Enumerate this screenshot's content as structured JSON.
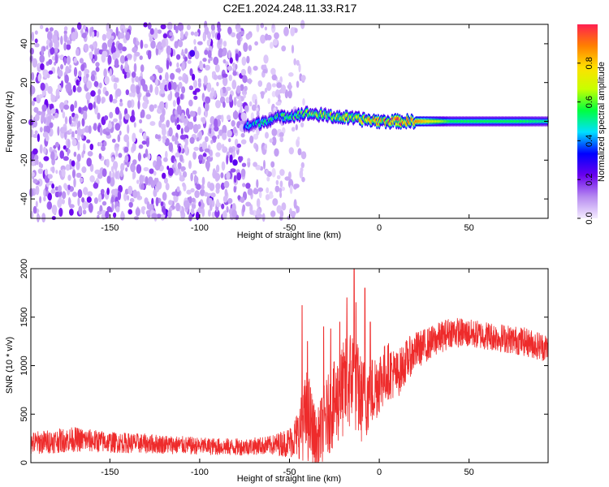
{
  "page": {
    "title": "C2E1.2024.248.11.33.R17"
  },
  "chart_data": [
    {
      "type": "heatmap",
      "title": "C2E1.2024.248.11.33.R17",
      "xlabel": "Height of straight line (km)",
      "ylabel": "Frequency (Hz)",
      "xlim": [
        -194,
        94
      ],
      "ylim": [
        -50,
        50
      ],
      "x_ticks": [
        -150,
        -100,
        -50,
        0,
        50
      ],
      "y_ticks": [
        -40,
        -20,
        0,
        20,
        40
      ],
      "x_tick_labels": [
        "-150",
        "-100",
        "-50",
        "0",
        "50"
      ],
      "y_tick_labels": [
        "-40",
        "-20",
        "0",
        "20",
        "40"
      ],
      "colorbar": {
        "label": "Normalized spectral amplitude",
        "range": [
          0,
          1
        ],
        "ticks": [
          0.0,
          0.2,
          0.4,
          0.6,
          0.8
        ],
        "tick_labels": [
          "0.0",
          "0.2",
          "0.4",
          "0.6",
          "0.8"
        ],
        "colors": [
          "#f4ecff",
          "#b68af0",
          "#6a00ee",
          "#0000ff",
          "#00e0ff",
          "#00ff40",
          "#c8ff00",
          "#ffe000",
          "#ff8000",
          "#ff2050"
        ]
      },
      "features": {
        "noise_region_x": [
          -194,
          -73
        ],
        "sparse_noise_x": [
          -73,
          -42
        ],
        "signal_track": [
          {
            "x": -75,
            "freq": -3,
            "amp": 0.45
          },
          {
            "x": -60,
            "freq": 1,
            "amp": 0.5
          },
          {
            "x": -50,
            "freq": 3,
            "amp": 0.5
          },
          {
            "x": -40,
            "freq": 4,
            "amp": 0.6
          },
          {
            "x": -30,
            "freq": 3,
            "amp": 0.65
          },
          {
            "x": -20,
            "freq": 2,
            "amp": 0.7
          },
          {
            "x": -10,
            "freq": 1,
            "amp": 0.75
          },
          {
            "x": 0,
            "freq": 0,
            "amp": 0.8
          },
          {
            "x": 10,
            "freq": 0,
            "amp": 0.85
          },
          {
            "x": 20,
            "freq": 0,
            "amp": 0.9
          },
          {
            "x": 40,
            "freq": 0,
            "amp": 0.55
          },
          {
            "x": 60,
            "freq": 0,
            "amp": 0.55
          },
          {
            "x": 80,
            "freq": 0,
            "amp": 0.55
          },
          {
            "x": 94,
            "freq": 0,
            "amp": 0.5
          }
        ]
      }
    },
    {
      "type": "line",
      "xlabel": "Height of straight line (km)",
      "ylabel": "SNR (10 * v/v)",
      "xlim": [
        -194,
        94
      ],
      "ylim": [
        0,
        2000
      ],
      "x_ticks": [
        -150,
        -100,
        -50,
        0,
        50
      ],
      "y_ticks": [
        0,
        500,
        1000,
        1500,
        2000
      ],
      "x_tick_labels": [
        "-150",
        "-100",
        "-50",
        "0",
        "50"
      ],
      "y_tick_labels": [
        "0",
        "500",
        "1000",
        "1500",
        "2000"
      ],
      "color": "#ee2b2b",
      "series": [
        {
          "x": [
            -194,
            -170,
            -150,
            -120,
            -100,
            -80,
            -70,
            -60,
            -50,
            -45,
            -40,
            -35,
            -30,
            -25,
            -20,
            -15,
            -10,
            -5,
            0,
            5,
            10,
            15,
            20,
            25,
            30,
            40,
            50,
            60,
            70,
            80,
            94
          ],
          "y": [
            200,
            240,
            210,
            190,
            170,
            160,
            170,
            180,
            210,
            300,
            500,
            200,
            450,
            600,
            750,
            900,
            650,
            700,
            850,
            950,
            900,
            1050,
            1150,
            1200,
            1250,
            1350,
            1330,
            1310,
            1280,
            1250,
            1180
          ],
          "noise": [
            120,
            130,
            110,
            100,
            90,
            90,
            90,
            100,
            160,
            260,
            500,
            300,
            400,
            450,
            500,
            550,
            450,
            400,
            350,
            300,
            250,
            220,
            200,
            180,
            170,
            160,
            150,
            150,
            150,
            150,
            150
          ],
          "spikes": [
            {
              "x": -43,
              "y": 1620
            },
            {
              "x": -40,
              "y": 1250
            },
            {
              "x": -31,
              "y": 1400
            },
            {
              "x": -27,
              "y": 1380
            },
            {
              "x": -22,
              "y": 1450
            },
            {
              "x": -18,
              "y": 1700
            },
            {
              "x": -14,
              "y": 2000
            },
            {
              "x": -13,
              "y": 1650
            },
            {
              "x": -8,
              "y": 1800
            },
            {
              "x": -5,
              "y": 1450
            }
          ]
        }
      ]
    }
  ]
}
